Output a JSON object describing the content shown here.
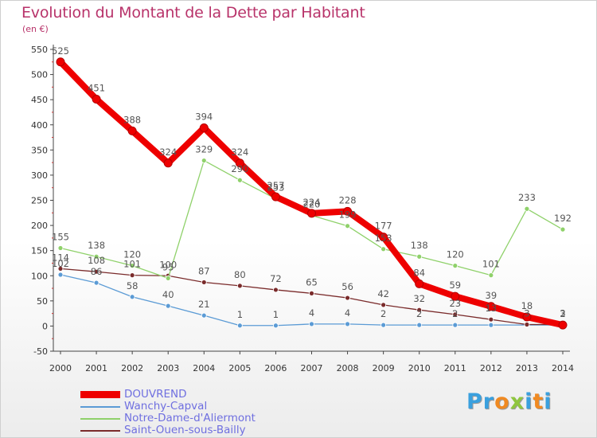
{
  "title": "Evolution du Montant de la Dette par Habitant",
  "unit_label": "(en €)",
  "logo": {
    "letters": [
      "P",
      "r",
      "o",
      "x",
      "i",
      "t",
      "i"
    ],
    "colors": [
      "#3aa0de",
      "#3aa0de",
      "#f08a22",
      "#8fc63f",
      "#3aa0de",
      "#f08a22",
      "#3aa0de"
    ]
  },
  "chart_data": {
    "type": "line",
    "title": "Evolution du Montant de la Dette par Habitant",
    "ylabel": "(en €)",
    "xlabel": "",
    "x": [
      "2000",
      "2001",
      "2002",
      "2003",
      "2004",
      "2005",
      "2006",
      "2007",
      "2008",
      "2009",
      "2010",
      "2011",
      "2012",
      "2013",
      "2014"
    ],
    "ylim": [
      -50,
      550
    ],
    "yticks": [
      "-50",
      "0",
      "50",
      "100",
      "150",
      "200",
      "250",
      "300",
      "350",
      "400",
      "450",
      "500",
      "550"
    ],
    "grid": false,
    "legend": "bottom-left",
    "series": [
      {
        "name": "DOUVREND",
        "color": "#ee0000",
        "values": [
          525,
          451,
          388,
          324,
          394,
          324,
          257,
          224,
          228,
          177,
          84,
          59,
          39,
          18,
          2
        ],
        "labels": [
          "525",
          "451",
          "388",
          "324",
          "394",
          "324",
          "257",
          "224",
          "228",
          "177",
          "84",
          "59",
          "39",
          "18",
          "2"
        ]
      },
      {
        "name": "Wanchy-Capval",
        "color": "#5b9bd5",
        "values": [
          102,
          86,
          58,
          40,
          21,
          1,
          1,
          4,
          4,
          2,
          2,
          2,
          2,
          2,
          2
        ],
        "labels": [
          "102",
          "86",
          "58",
          "40",
          "21",
          "1",
          "1",
          "4",
          "4",
          "2",
          "2",
          "2",
          "",
          "",
          ""
        ]
      },
      {
        "name": "Notre-Dame-d'Aliermont",
        "color": "#8fd16a",
        "values": [
          155,
          138,
          120,
          95,
          329,
          290,
          253,
          220,
          199,
          153,
          138,
          120,
          101,
          233,
          192
        ],
        "labels": [
          "155",
          "138",
          "120",
          "95",
          "329",
          "290",
          "253",
          "220",
          "199",
          "153",
          "138",
          "120",
          "101",
          "233",
          "192"
        ]
      },
      {
        "name": "Saint-Ouen-sous-Bailly",
        "color": "#7a2b2b",
        "values": [
          114,
          108,
          101,
          100,
          87,
          80,
          72,
          65,
          56,
          42,
          32,
          23,
          13,
          3,
          3
        ],
        "labels": [
          "114",
          "108",
          "101",
          "100",
          "87",
          "80",
          "72",
          "65",
          "56",
          "42",
          "32",
          "23",
          "13",
          "3",
          "3"
        ]
      }
    ]
  }
}
